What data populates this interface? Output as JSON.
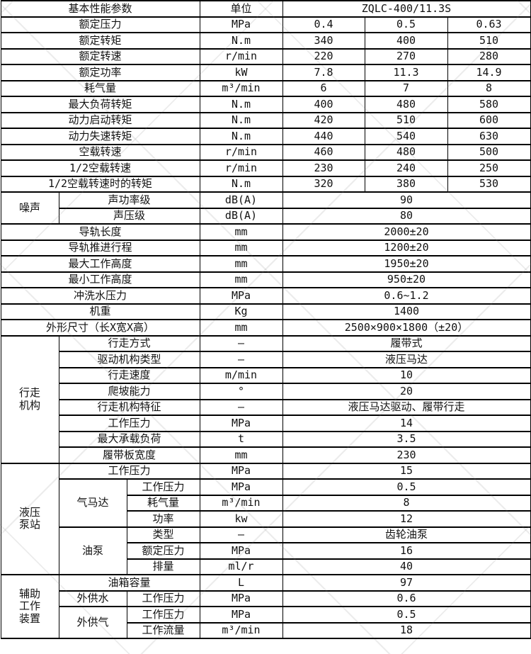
{
  "colors": {
    "border": "#000000",
    "text": "#111111",
    "background": "#ffffff",
    "watermark_gray": "#bdbdbd"
  },
  "table": {
    "header": {
      "param": "基本性能参数",
      "unit": "单位",
      "model": "ZQLC-400/11.3S"
    },
    "basic": [
      {
        "label": "额定压力",
        "unit": "MPa",
        "v1": "0.4",
        "v2": "0.5",
        "v3": "0.63"
      },
      {
        "label": "额定转矩",
        "unit": "N.m",
        "v1": "340",
        "v2": "400",
        "v3": "510"
      },
      {
        "label": "额定转速",
        "unit": "r/min",
        "v1": "220",
        "v2": "270",
        "v3": "280"
      },
      {
        "label": "额定功率",
        "unit": "kW",
        "v1": "7.8",
        "v2": "11.3",
        "v3": "14.9"
      },
      {
        "label": "耗气量",
        "unit": "m³/min",
        "v1": "6",
        "v2": "7",
        "v3": "8"
      },
      {
        "label": "最大负荷转矩",
        "unit": "N.m",
        "v1": "400",
        "v2": "480",
        "v3": "580"
      },
      {
        "label": "动力启动转矩",
        "unit": "N.m",
        "v1": "420",
        "v2": "510",
        "v3": "600"
      },
      {
        "label": "动力失速转矩",
        "unit": "N.m",
        "v1": "440",
        "v2": "540",
        "v3": "630"
      },
      {
        "label": "空载转速",
        "unit": "r/min",
        "v1": "460",
        "v2": "480",
        "v3": "500"
      },
      {
        "label": "1/2空载转速",
        "unit": "r/min",
        "v1": "230",
        "v2": "240",
        "v3": "250"
      },
      {
        "label": "1/2空载转速时的转矩",
        "unit": "N.m",
        "v1": "320",
        "v2": "380",
        "v3": "530"
      }
    ],
    "noise": {
      "group": "噪声",
      "rows": [
        {
          "label": "声功率级",
          "unit": "dB(A)",
          "value": "90"
        },
        {
          "label": "声压级",
          "unit": "dB(A)",
          "value": "80"
        }
      ]
    },
    "general": [
      {
        "label": "导轨长度",
        "unit": "mm",
        "value": "2000±20"
      },
      {
        "label": "导轨推进行程",
        "unit": "mm",
        "value": "1200±20"
      },
      {
        "label": "最大工作高度",
        "unit": "mm",
        "value": "1950±20"
      },
      {
        "label": "最小工作高度",
        "unit": "mm",
        "value": "950±20"
      },
      {
        "label": "冲洗水压力",
        "unit": "MPa",
        "value": "0.6~1.2"
      },
      {
        "label": "机重",
        "unit": "Kg",
        "value": "1400"
      },
      {
        "label": "外形尺寸（长X宽X高）",
        "unit": "mm",
        "value": "2500×900×1800（±20）"
      }
    ],
    "travel": {
      "group": "行走\n机构",
      "rows": [
        {
          "label": "行走方式",
          "unit": "—",
          "value": "履带式"
        },
        {
          "label": "驱动机构类型",
          "unit": "—",
          "value": "液压马达"
        },
        {
          "label": "行走速度",
          "unit": "m/min",
          "value": "10"
        },
        {
          "label": "爬坡能力",
          "unit": "°",
          "value": "20"
        },
        {
          "label": "行走机构特征",
          "unit": "—",
          "value": "液压马达驱动、履带行走"
        },
        {
          "label": "工作压力",
          "unit": "MPa",
          "value": "14"
        },
        {
          "label": "最大承载负荷",
          "unit": "t",
          "value": "3.5"
        },
        {
          "label": "履带板宽度",
          "unit": "mm",
          "value": "230"
        }
      ]
    },
    "hydraulic": {
      "group": "液压\n泵站",
      "work": {
        "label": "工作压力",
        "unit": "MPa",
        "value": "15"
      },
      "air_motor": {
        "label": "气马达",
        "rows": [
          {
            "label": "工作压力",
            "unit": "MPa",
            "value": "0.5"
          },
          {
            "label": "耗气量",
            "unit": "m³/min",
            "value": "8"
          },
          {
            "label": "功率",
            "unit": "kw",
            "value": "12"
          }
        ]
      },
      "oil_pump": {
        "label": "油泵",
        "rows": [
          {
            "label": "类型",
            "unit": "—",
            "value": "齿轮油泵"
          },
          {
            "label": "额定压力",
            "unit": "MPa",
            "value": "16"
          },
          {
            "label": "排量",
            "unit": "ml/r",
            "value": "40"
          }
        ]
      }
    },
    "auxiliary": {
      "group": "辅助\n工作\n装置",
      "tank": {
        "label": "油箱容量",
        "unit": "L",
        "value": "97"
      },
      "water": {
        "label": "外供水",
        "rows": [
          {
            "label": "工作压力",
            "unit": "MPa",
            "value": "0.6"
          }
        ]
      },
      "gas": {
        "label": "外供气",
        "rows": [
          {
            "label": "工作压力",
            "unit": "MPa",
            "value": "0.5"
          },
          {
            "label": "工作流量",
            "unit": "m³/min",
            "value": "18"
          }
        ]
      }
    }
  }
}
